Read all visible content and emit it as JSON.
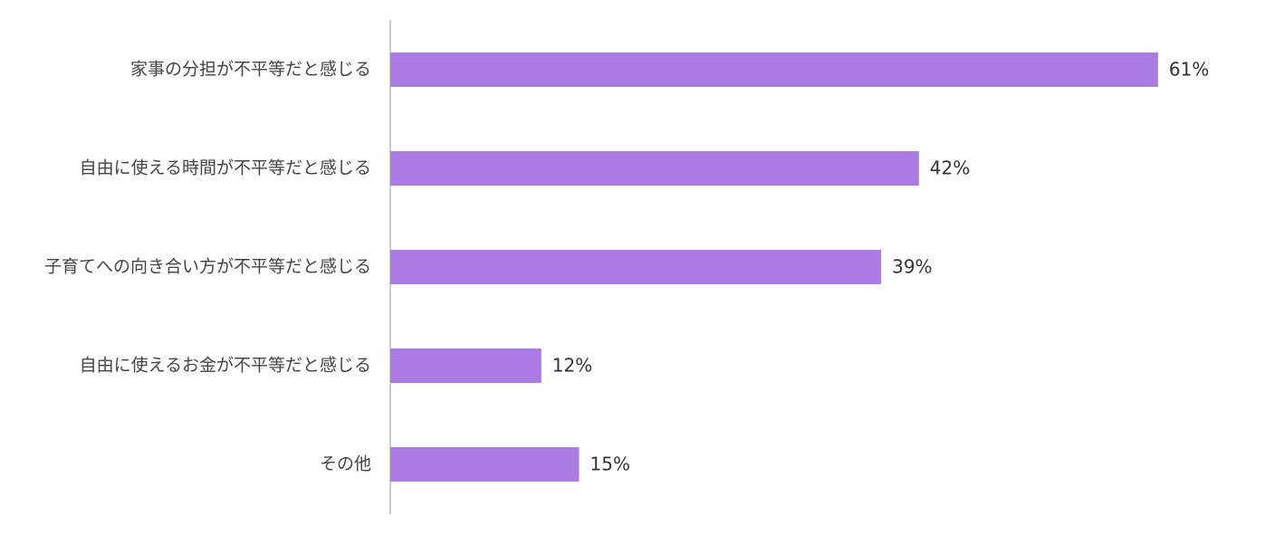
{
  "chart_data": {
    "type": "barh",
    "categories": [
      "家事の分担が不平等だと感じる",
      "自由に使える時間が不平等だと感じる",
      "子育てへの向き合い方が不平等だと感じる",
      "自由に使えるお金が不平等だと感じる",
      "その他"
    ],
    "values": [
      61,
      42,
      39,
      12,
      15
    ],
    "value_labels": [
      "61%",
      "42%",
      "39%",
      "12%",
      "15%"
    ],
    "color": "#a97be3",
    "xlim": [
      0,
      70
    ]
  }
}
